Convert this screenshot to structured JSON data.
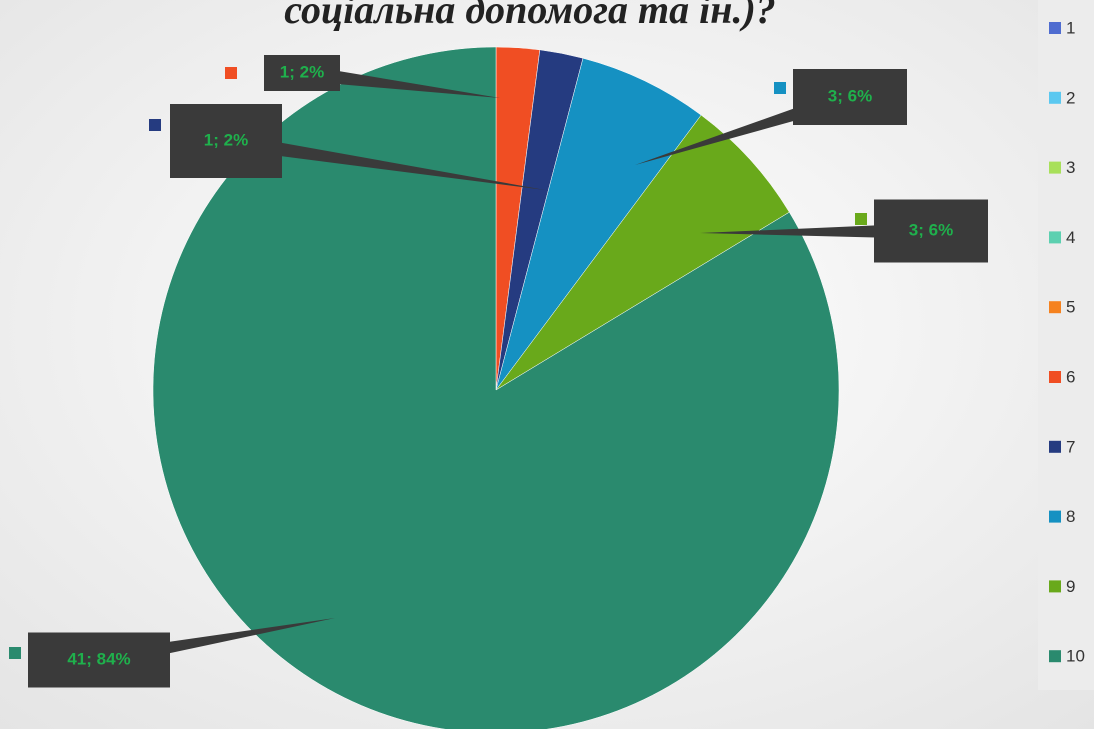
{
  "chart_data": {
    "type": "pie",
    "title": "соціальна допомога та ін.)?",
    "categories": [
      "1",
      "2",
      "3",
      "4",
      "5",
      "6",
      "7",
      "8",
      "9",
      "10"
    ],
    "values": [
      0,
      0,
      0,
      0,
      0,
      1,
      1,
      3,
      3,
      41
    ],
    "value_labels": [
      null,
      null,
      null,
      null,
      null,
      "1; 2%",
      "1; 2%",
      "3; 6%",
      "3; 6%",
      "41; 84%"
    ],
    "colors": [
      "#4f6cd0",
      "#5bc8f0",
      "#a8e05a",
      "#5cd0b0",
      "#f5821f",
      "#f04e23",
      "#253b80",
      "#1591c2",
      "#69a91b",
      "#2a8a6e"
    ],
    "legend": "right"
  }
}
